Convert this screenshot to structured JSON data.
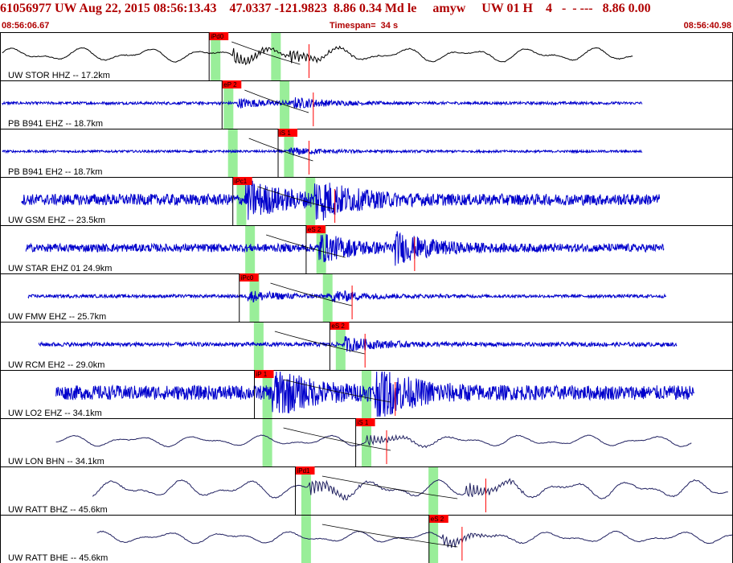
{
  "header": {
    "title": "61056977 UW Aug 22, 2015 08:56:13.43    47.0337 -121.9823  8.86 0.34 Md le     amyw     UW 01 H    4   -  - ---   8.86 0.00",
    "start_time": "08:56:06.67",
    "timespan": "Timespan=  34 s",
    "end_time": "08:56:40.98"
  },
  "colors": {
    "header_text": "#b00000",
    "trace_blue": "#0000cc",
    "trace_black": "#000000",
    "trace_navy": "#202060",
    "pick_flag": "#ff0000",
    "pick_window": "#99ee99",
    "border": "#000000"
  },
  "chart_data": {
    "type": "line",
    "title": "",
    "time_range": [
      0,
      34
    ],
    "series": [
      {
        "label": "UW STOR HHZ -- 17.2km",
        "color": "#000000",
        "style": "smooth",
        "start": 0.1,
        "end": 29.4,
        "amp": 0.35,
        "picks": [
          {
            "label": "iPd0",
            "t": 9.7
          }
        ],
        "windows": [
          10.0,
          12.8
        ],
        "events": [
          10.8,
          13.4
        ]
      },
      {
        "label": "PB B941 EHZ -- 18.7km",
        "color": "#0000cc",
        "style": "noisy",
        "start": 0.1,
        "end": 29.8,
        "amp": 0.06,
        "picks": [
          {
            "label": "eP 2",
            "t": 10.3
          }
        ],
        "windows": [
          10.6,
          13.2
        ],
        "events": [
          11.0,
          13.6
        ]
      },
      {
        "label": "PB B941 EH2 -- 18.7km",
        "color": "#0000cc",
        "style": "noisy",
        "start": 0.1,
        "end": 29.8,
        "amp": 0.05,
        "picks": [
          {
            "label": "iS 1",
            "t": 12.9
          }
        ],
        "windows": [
          10.8,
          13.4
        ],
        "events": [
          13.4
        ]
      },
      {
        "label": "UW GSM EHZ -- 23.5km",
        "color": "#0000cc",
        "style": "noisy",
        "start": 1.0,
        "end": 30.6,
        "amp": 0.25,
        "picks": [
          {
            "label": "iPc1",
            "t": 10.8
          }
        ],
        "windows": [
          11.2,
          14.4
        ],
        "events": [
          11.4,
          14.6
        ]
      },
      {
        "label": "UW STAR EHZ 01 24.9km",
        "color": "#0000cc",
        "style": "noisy",
        "start": 1.2,
        "end": 30.8,
        "amp": 0.18,
        "picks": [
          {
            "label": "eS 2",
            "t": 14.2
          }
        ],
        "windows": [
          11.6,
          14.9
        ],
        "events": [
          14.8,
          18.3
        ]
      },
      {
        "label": "UW FMW EHZ -- 25.7km",
        "color": "#0000cc",
        "style": "noisy",
        "start": 1.3,
        "end": 30.9,
        "amp": 0.07,
        "picks": [
          {
            "label": "iPc0",
            "t": 11.1
          }
        ],
        "windows": [
          11.8,
          15.2
        ],
        "events": [
          11.5,
          15.4
        ]
      },
      {
        "label": "UW RCM EH2 -- 29.0km",
        "color": "#0000cc",
        "style": "noisy",
        "start": 1.8,
        "end": 31.4,
        "amp": 0.09,
        "picks": [
          {
            "label": "eS 2",
            "t": 15.3
          }
        ],
        "windows": [
          12.0,
          15.8
        ],
        "events": [
          16.0
        ]
      },
      {
        "label": "UW LO2 EHZ -- 34.1km",
        "color": "#0000cc",
        "style": "noisy",
        "start": 2.6,
        "end": 32.2,
        "amp": 0.32,
        "picks": [
          {
            "label": "iP 1",
            "t": 11.8
          }
        ],
        "windows": [
          12.4,
          17.0
        ],
        "events": [
          12.6,
          17.4
        ]
      },
      {
        "label": "UW LON BHN -- 34.1km",
        "color": "#202060",
        "style": "smooth",
        "start": 2.6,
        "end": 32.1,
        "amp": 0.28,
        "picks": [
          {
            "label": "iS 1",
            "t": 16.5
          }
        ],
        "windows": [
          12.4,
          17.0
        ],
        "events": [
          17.0
        ]
      },
      {
        "label": "UW RATT BHZ -- 45.6km",
        "color": "#202060",
        "style": "smooth",
        "start": 4.3,
        "end": 33.8,
        "amp": 0.45,
        "picks": [
          {
            "label": "iPd1",
            "t": 13.7
          }
        ],
        "windows": [
          14.2,
          20.1
        ],
        "events": [
          14.3,
          21.6
        ]
      },
      {
        "label": "UW RATT BHE -- 45.6km",
        "color": "#202060",
        "style": "smooth",
        "start": 4.5,
        "end": 34.0,
        "amp": 0.3,
        "picks": [
          {
            "label": "eS 2",
            "t": 19.9
          }
        ],
        "windows": [
          14.2,
          20.1
        ],
        "events": [
          20.5
        ]
      }
    ]
  }
}
